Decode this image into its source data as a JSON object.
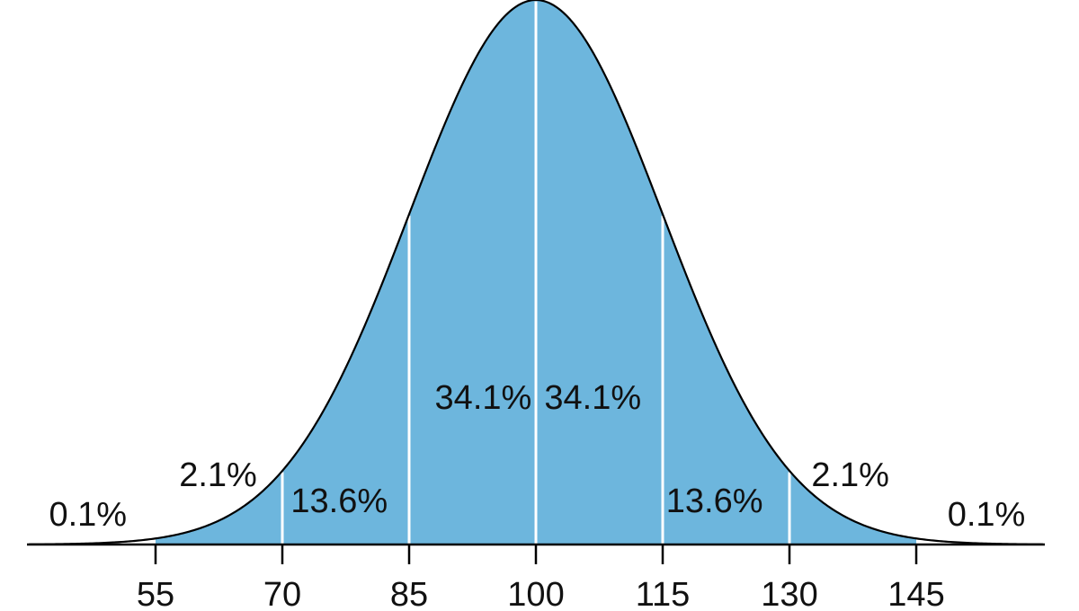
{
  "chart_data": {
    "type": "area",
    "distribution": "normal",
    "mean": 100,
    "sd": 15,
    "xlim": [
      40,
      160
    ],
    "ticks": [
      {
        "value": 55,
        "label": "55"
      },
      {
        "value": 70,
        "label": "70"
      },
      {
        "value": 85,
        "label": "85"
      },
      {
        "value": 100,
        "label": "100"
      },
      {
        "value": 115,
        "label": "115"
      },
      {
        "value": 130,
        "label": "130"
      },
      {
        "value": 145,
        "label": "145"
      }
    ],
    "shaded_range": [
      55,
      145
    ],
    "dividers": [
      70,
      85,
      100,
      115,
      130
    ],
    "regions": [
      {
        "from": 40,
        "to": 55,
        "label": "0.1%"
      },
      {
        "from": 55,
        "to": 70,
        "label": "2.1%"
      },
      {
        "from": 70,
        "to": 85,
        "label": "13.6%"
      },
      {
        "from": 85,
        "to": 100,
        "label": "34.1%"
      },
      {
        "from": 100,
        "to": 115,
        "label": "34.1%"
      },
      {
        "from": 115,
        "to": 130,
        "label": "13.6%"
      },
      {
        "from": 130,
        "to": 145,
        "label": "2.1%"
      },
      {
        "from": 145,
        "to": 160,
        "label": "0.1%"
      }
    ],
    "colors": {
      "fill": "#6db6dd",
      "curve": "#000000",
      "divider": "#ffffff",
      "axis": "#000000"
    },
    "grid": false,
    "title": "",
    "xlabel": "",
    "ylabel": ""
  }
}
